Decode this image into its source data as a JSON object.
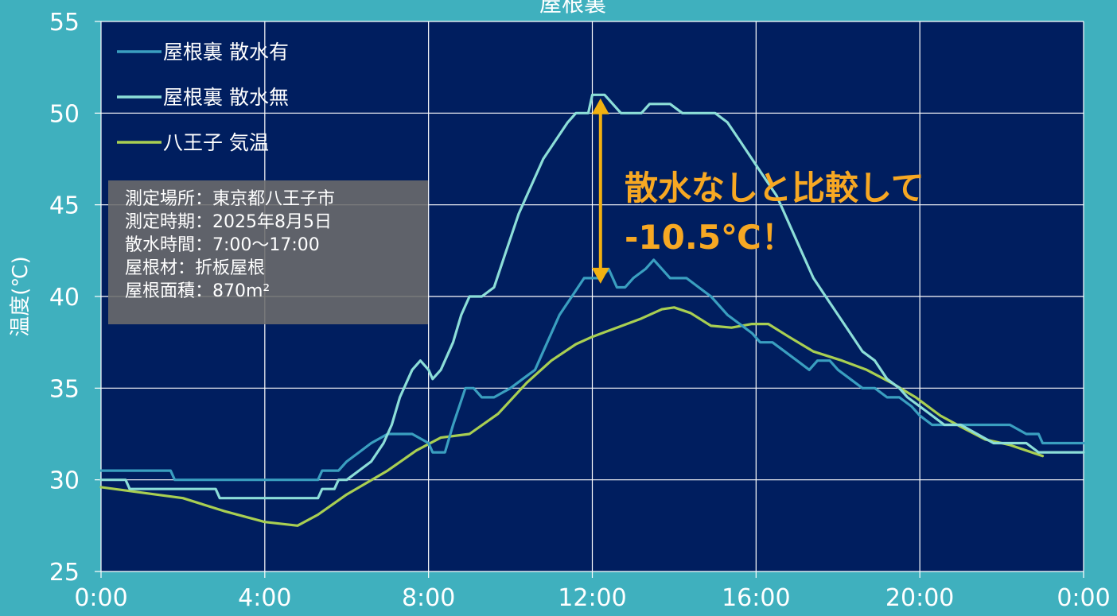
{
  "chart_data": {
    "type": "line",
    "title": "屋根裏",
    "ylabel": "温度(℃)",
    "xlabel": "",
    "x_ticks": [
      "0:00",
      "4:00",
      "8:00",
      "12:00",
      "16:00",
      "20:00",
      "0:00"
    ],
    "x_range_hours": [
      0,
      24
    ],
    "ylim": [
      25,
      55
    ],
    "y_ticks": [
      25,
      30,
      35,
      40,
      45,
      50,
      55
    ],
    "grid": true,
    "legend_position": "top-left",
    "series": [
      {
        "name": "屋根裏 散水有",
        "color": "#3a9fc0",
        "x": [
          0,
          1.7,
          1.8,
          2.8,
          2.9,
          5.3,
          5.4,
          5.8,
          6.0,
          6.3,
          6.6,
          7.0,
          7.3,
          7.6,
          8.0,
          8.1,
          8.4,
          8.6,
          8.9,
          9.1,
          9.3,
          9.6,
          10.0,
          10.3,
          10.6,
          10.9,
          11.2,
          11.5,
          11.8,
          12.0,
          12.2,
          12.4,
          12.6,
          12.8,
          13.0,
          13.3,
          13.5,
          13.7,
          13.9,
          14.1,
          14.3,
          14.6,
          14.9,
          15.1,
          15.3,
          15.6,
          15.9,
          16.1,
          16.4,
          16.7,
          17.0,
          17.3,
          17.5,
          17.8,
          18.0,
          18.3,
          18.6,
          18.9,
          19.2,
          19.5,
          19.8,
          20.0,
          20.3,
          20.6,
          21.0,
          21.4,
          21.8,
          22.2,
          22.6,
          22.9,
          23.0,
          23.5,
          24
        ],
        "y": [
          30.5,
          30.5,
          30.0,
          30.0,
          30.0,
          30.0,
          30.5,
          30.5,
          31.0,
          31.5,
          32.0,
          32.5,
          32.5,
          32.5,
          32.0,
          31.5,
          31.5,
          33.0,
          35.0,
          35.0,
          34.5,
          34.5,
          35.0,
          35.5,
          36.0,
          37.5,
          39.0,
          40.0,
          41.0,
          41.0,
          41.0,
          41.5,
          40.5,
          40.5,
          41.0,
          41.5,
          42.0,
          41.5,
          41.0,
          41.0,
          41.0,
          40.5,
          40.0,
          39.5,
          39.0,
          38.5,
          38.0,
          37.5,
          37.5,
          37.0,
          36.5,
          36.0,
          36.5,
          36.5,
          36.0,
          35.5,
          35.0,
          35.0,
          34.5,
          34.5,
          34.0,
          33.5,
          33.0,
          33.0,
          33.0,
          33.0,
          33.0,
          33.0,
          32.5,
          32.5,
          32.0,
          32.0,
          32.0
        ]
      },
      {
        "name": "屋根裏 散水無",
        "color": "#8cded8",
        "x": [
          0,
          0.6,
          0.7,
          1.9,
          2.0,
          2.8,
          2.9,
          4.0,
          4.5,
          5.3,
          5.4,
          5.7,
          5.8,
          6.0,
          6.3,
          6.6,
          6.9,
          7.1,
          7.3,
          7.6,
          7.8,
          8.0,
          8.1,
          8.3,
          8.6,
          8.8,
          9.0,
          9.3,
          9.6,
          9.9,
          10.2,
          10.5,
          10.8,
          11.1,
          11.4,
          11.6,
          11.9,
          12.0,
          12.3,
          12.5,
          12.7,
          12.9,
          13.2,
          13.4,
          13.6,
          13.9,
          14.2,
          14.5,
          14.8,
          15.0,
          15.3,
          15.6,
          15.9,
          16.2,
          16.5,
          16.8,
          17.1,
          17.4,
          17.7,
          18.0,
          18.3,
          18.6,
          18.9,
          19.2,
          19.5,
          19.7,
          20.0,
          20.3,
          20.6,
          21.0,
          21.4,
          21.8,
          22.2,
          22.6,
          22.9,
          23.0,
          23.5,
          24
        ],
        "y": [
          30.0,
          30.0,
          29.5,
          29.5,
          29.5,
          29.5,
          29.0,
          29.0,
          29.0,
          29.0,
          29.5,
          29.5,
          30.0,
          30.0,
          30.5,
          31.0,
          32.0,
          33.0,
          34.5,
          36.0,
          36.5,
          36.0,
          35.5,
          36.0,
          37.5,
          39.0,
          40.0,
          40.0,
          40.5,
          42.5,
          44.5,
          46.0,
          47.5,
          48.5,
          49.5,
          50.0,
          50.0,
          51.0,
          51.0,
          50.5,
          50.0,
          50.0,
          50.0,
          50.5,
          50.5,
          50.5,
          50.0,
          50.0,
          50.0,
          50.0,
          49.5,
          48.5,
          47.5,
          46.5,
          45.5,
          44.0,
          42.5,
          41.0,
          40.0,
          39.0,
          38.0,
          37.0,
          36.5,
          35.5,
          35.0,
          34.5,
          34.0,
          33.5,
          33.0,
          33.0,
          32.5,
          32.0,
          32.0,
          32.0,
          31.5,
          31.5,
          31.5,
          31.5
        ]
      },
      {
        "name": "八王子 気温",
        "color": "#a9cf52",
        "x": [
          0,
          1,
          2,
          3,
          4,
          4.8,
          5.3,
          6.0,
          7.0,
          7.7,
          8.3,
          9.0,
          9.7,
          10.4,
          11.0,
          11.6,
          12.0,
          12.6,
          13.2,
          13.7,
          14.0,
          14.4,
          14.9,
          15.4,
          15.9,
          16.3,
          16.8,
          17.4,
          18.1,
          18.7,
          19.3,
          19.9,
          20.5,
          21.0,
          21.6,
          22.2,
          23.0
        ],
        "y": [
          29.6,
          29.3,
          29.0,
          28.3,
          27.7,
          27.5,
          28.1,
          29.2,
          30.5,
          31.6,
          32.3,
          32.5,
          33.6,
          35.3,
          36.5,
          37.4,
          37.8,
          38.3,
          38.8,
          39.3,
          39.4,
          39.1,
          38.4,
          38.3,
          38.5,
          38.5,
          37.8,
          37.0,
          36.5,
          36.0,
          35.3,
          34.5,
          33.5,
          32.9,
          32.2,
          31.9,
          31.3
        ]
      }
    ],
    "annotation_lines": [
      "散水なしと比較して",
      "-10.5℃！"
    ],
    "annotation_arrow": {
      "x": 12.2,
      "y_from": 41,
      "y_to": 50.5,
      "color": "#f2b111"
    },
    "info_box": [
      "測定場所：東京都八王子市",
      "測定時期：2025年8月5日",
      "散水時間：7:00～17:00",
      "屋根材：折板屋根",
      "屋根面積：870m²"
    ]
  },
  "colors": {
    "background": "#3fb0be",
    "plot_area": "#001e5f",
    "grid": "#ffffff",
    "annotation": "#f7a823"
  }
}
